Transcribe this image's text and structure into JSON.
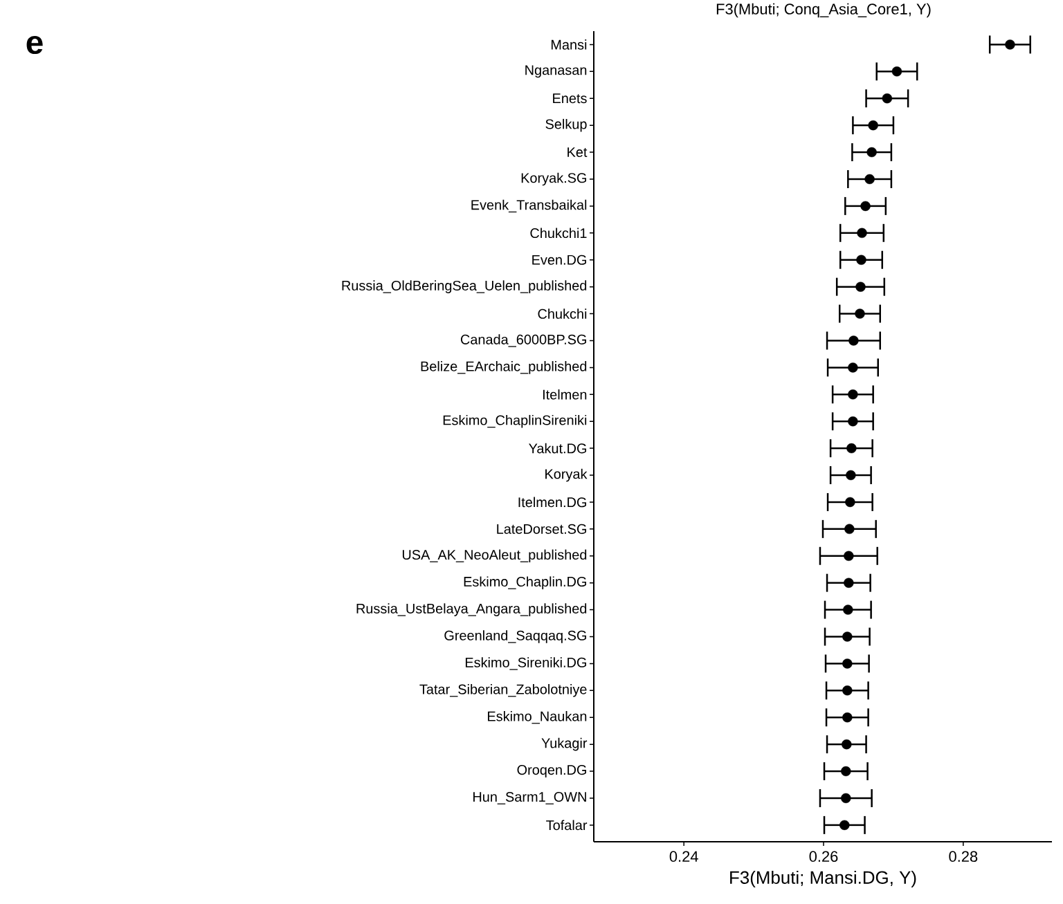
{
  "chart_data": {
    "type": "scatter",
    "orientation": "horizontal",
    "marker": "circle",
    "grid": false,
    "color": "#000000",
    "xlabel": "F3(Mbuti; Mansi.DG, Y)",
    "annotations": [
      "e",
      "F3(Mbuti; Conq_Asia_Core1, Y)"
    ],
    "xlim": [
      0.2271,
      0.2927
    ],
    "xticks": [
      0.24,
      0.26,
      0.28
    ],
    "categories": [
      "Mansi",
      "Nganasan",
      "Enets",
      "Selkup",
      "Ket",
      "Koryak.SG",
      "Evenk_Transbaikal",
      "Chukchi1",
      "Even.DG",
      "Russia_OldBeringSea_Uelen_published",
      "Chukchi",
      "Canada_6000BP.SG",
      "Belize_EArchaic_published",
      "Itelmen",
      "Eskimo_ChaplinSireniki",
      "Yakut.DG",
      "Koryak",
      "Itelmen.DG",
      "LateDorset.SG",
      "USA_AK_NeoAleut_published",
      "Eskimo_Chaplin.DG",
      "Russia_UstBelaya_Angara_published",
      "Greenland_Saqqaq.SG",
      "Eskimo_Sireniki.DG",
      "Tatar_Siberian_Zabolotniye",
      "Eskimo_Naukan",
      "Yukagir",
      "Oroqen.DG",
      "Hun_Sarm1_OWN",
      "Tofalar"
    ],
    "values": [
      0.2867,
      0.2705,
      0.2691,
      0.2671,
      0.2669,
      0.2666,
      0.266,
      0.2655,
      0.2654,
      0.2653,
      0.2652,
      0.2643,
      0.2642,
      0.2642,
      0.2642,
      0.264,
      0.2639,
      0.2638,
      0.2637,
      0.2636,
      0.2636,
      0.2635,
      0.2634,
      0.2634,
      0.2634,
      0.2634,
      0.2633,
      0.2632,
      0.2632,
      0.263
    ],
    "errors": [
      0.0029,
      0.0029,
      0.003,
      0.0029,
      0.0028,
      0.0031,
      0.0029,
      0.0031,
      0.003,
      0.0034,
      0.0029,
      0.0038,
      0.0036,
      0.0029,
      0.0029,
      0.003,
      0.0029,
      0.0032,
      0.0038,
      0.0041,
      0.0031,
      0.0033,
      0.0032,
      0.0031,
      0.003,
      0.003,
      0.0028,
      0.0031,
      0.0037,
      0.0029
    ]
  }
}
